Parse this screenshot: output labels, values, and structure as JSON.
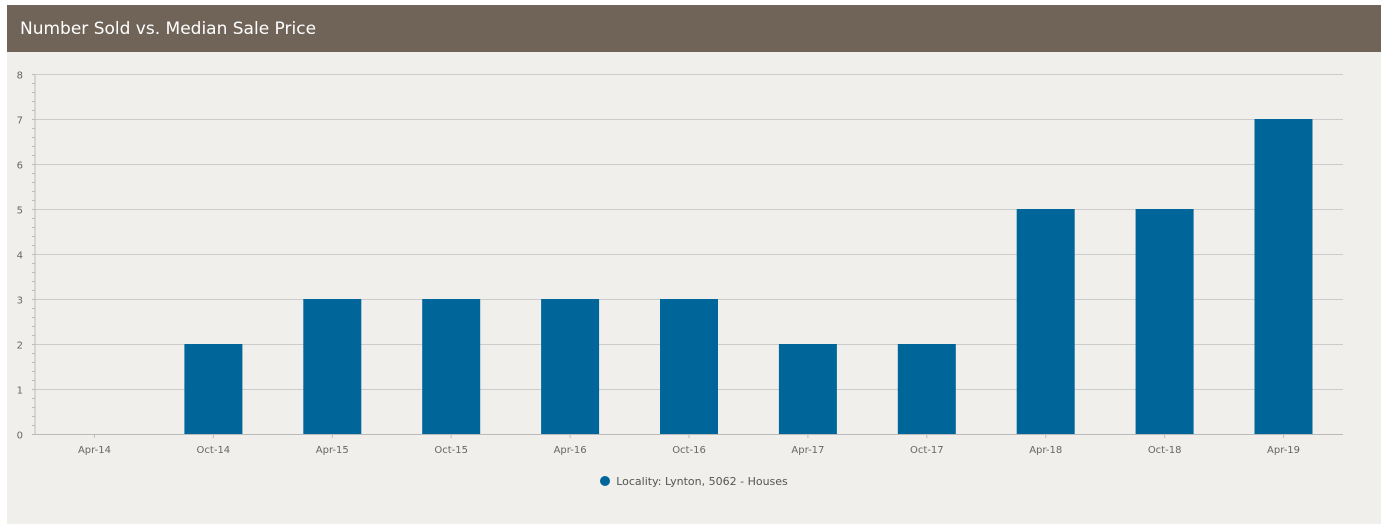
{
  "header": {
    "title": "Number Sold vs. Median Sale Price"
  },
  "colors": {
    "header_bg": "#706358",
    "panel_bg": "#f0efeb",
    "bar": "#006699",
    "grid": "#cccccc",
    "axis_text": "#666666"
  },
  "chart_data": {
    "type": "bar",
    "categories": [
      "Apr-14",
      "Oct-14",
      "Apr-15",
      "Oct-15",
      "Apr-16",
      "Oct-16",
      "Apr-17",
      "Oct-17",
      "Apr-18",
      "Oct-18",
      "Apr-19"
    ],
    "series": [
      {
        "name": "Locality: Lynton, 5062 - Houses",
        "values": [
          0,
          2,
          3,
          3,
          3,
          3,
          2,
          2,
          5,
          5,
          7
        ],
        "color": "#006699"
      }
    ],
    "yticks": [
      0,
      1,
      2,
      3,
      4,
      5,
      6,
      7,
      8
    ],
    "ylim": [
      0,
      8
    ],
    "grid": true,
    "legend_position": "bottom-center"
  }
}
